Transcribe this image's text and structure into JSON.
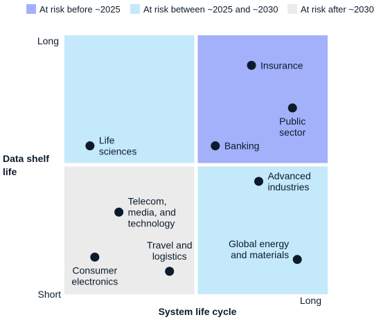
{
  "legend": [
    {
      "label": "At risk before ~2025",
      "color": "#a3b1fb"
    },
    {
      "label": "At risk between ~2025 and ~2030",
      "color": "#c4e9fb"
    },
    {
      "label": "At risk after ~2030",
      "color": "#ebebeb"
    }
  ],
  "chart_data": {
    "type": "scatter",
    "title": "",
    "xlabel": "System life cycle",
    "ylabel": "Data shelf life",
    "x_ticks": {
      "low": "",
      "high": "Long"
    },
    "y_ticks": {
      "low": "Short",
      "high": "Long"
    },
    "xlim": [
      0,
      1
    ],
    "ylim": [
      0,
      1
    ],
    "grid": false,
    "legend_position": "top",
    "quadrants": [
      {
        "region": "top-left",
        "legend_index": 1
      },
      {
        "region": "top-right",
        "legend_index": 0
      },
      {
        "region": "bottom-left",
        "legend_index": 2
      },
      {
        "region": "bottom-right",
        "legend_index": 1
      }
    ],
    "points": [
      {
        "label": [
          "Insurance"
        ],
        "x": 0.73,
        "y": 0.92,
        "label_side": "right"
      },
      {
        "label": [
          "Public",
          "sector"
        ],
        "x": 0.9,
        "y": 0.74,
        "label_side": "below"
      },
      {
        "label": [
          "Banking"
        ],
        "x": 0.58,
        "y": 0.58,
        "label_side": "right"
      },
      {
        "label": [
          "Life",
          "sciences"
        ],
        "x": 0.06,
        "y": 0.58,
        "label_side": "right"
      },
      {
        "label": [
          "Advanced",
          "industries"
        ],
        "x": 0.76,
        "y": 0.43,
        "label_side": "right"
      },
      {
        "label": [
          "Telecom,",
          "media, and",
          "technology"
        ],
        "x": 0.18,
        "y": 0.3,
        "label_side": "right"
      },
      {
        "label": [
          "Consumer",
          "electronics"
        ],
        "x": 0.08,
        "y": 0.11,
        "label_side": "below"
      },
      {
        "label": [
          "Travel and",
          "logistics"
        ],
        "x": 0.39,
        "y": 0.05,
        "label_side": "above"
      },
      {
        "label": [
          "Global energy",
          "and materials"
        ],
        "x": 0.92,
        "y": 0.1,
        "label_side": "left"
      }
    ]
  }
}
